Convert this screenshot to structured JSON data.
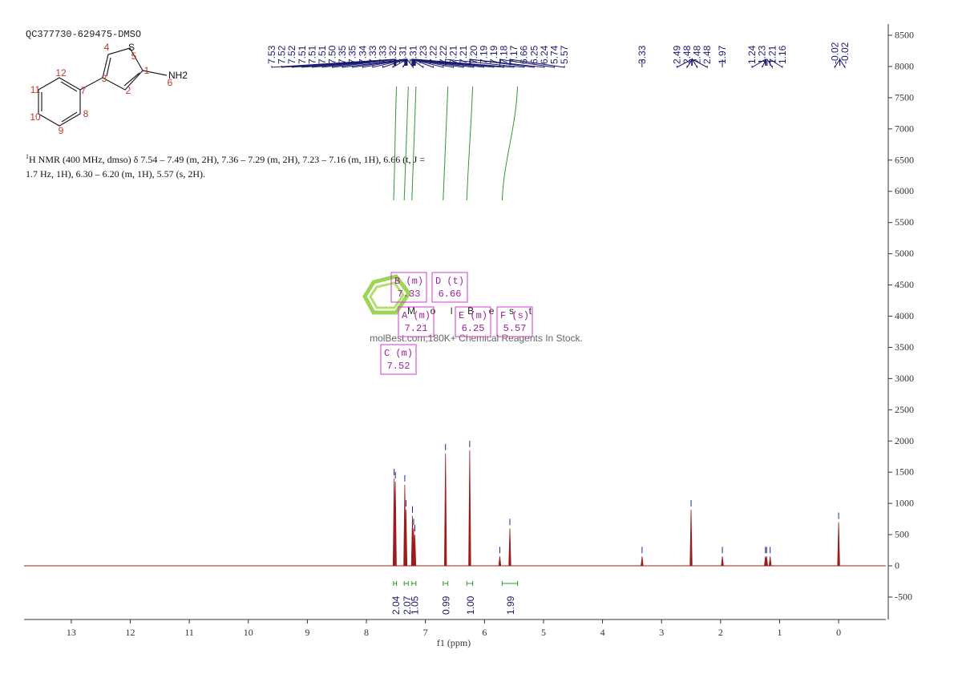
{
  "chart_data": {
    "type": "nmr",
    "title": "QC377730-629475-DMSO",
    "x_label": "f1 (ppm)",
    "xlim": [
      13.8,
      -0.8
    ],
    "xticks": [
      13,
      12,
      11,
      10,
      9,
      8,
      7,
      6,
      5,
      4,
      3,
      2,
      1,
      0
    ],
    "ylim": [
      -860,
      8680
    ],
    "yticks": [
      -500,
      0,
      500,
      1000,
      1500,
      2000,
      2500,
      3000,
      3500,
      4000,
      4500,
      5000,
      5500,
      6000,
      6500,
      7000,
      7500,
      8000,
      8500
    ],
    "series": [
      {
        "name": "spectrum",
        "color": "#9a1c1c",
        "x": [
          7.53,
          7.51,
          7.35,
          7.33,
          7.22,
          7.2,
          7.18,
          6.66,
          6.25,
          5.74,
          5.57,
          3.33,
          2.5,
          1.97,
          1.24,
          1.22,
          1.16,
          0
        ],
        "values": [
          1400,
          1350,
          1300,
          900,
          800,
          600,
          500,
          1800,
          1850,
          150,
          600,
          150,
          900,
          150,
          150,
          150,
          150,
          700
        ]
      }
    ],
    "peak_labels": [
      "7.53",
      "7.52",
      "7.52",
      "7.51",
      "7.51",
      "7.51",
      "7.50",
      "7.35",
      "7.35",
      "7.34",
      "7.33",
      "7.33",
      "7.32",
      "7.31",
      "7.31",
      "7.23",
      "7.22",
      "7.22",
      "7.21",
      "7.21",
      "7.20",
      "7.19",
      "7.19",
      "7.18",
      "7.17",
      "6.66",
      "6.25",
      "6.24",
      "5.74",
      "5.57",
      "3.33",
      "2.49",
      "2.48",
      "2.48",
      "2.48",
      "1.97",
      "1.24",
      "1.23",
      "1.21",
      "1.16",
      "-0.02",
      "-0.02"
    ],
    "integrals": [
      {
        "range": [
          7.54,
          7.49
        ],
        "label": "2.04"
      },
      {
        "range": [
          7.36,
          7.29
        ],
        "label": "2.07"
      },
      {
        "range": [
          7.23,
          7.16
        ],
        "label": "1.05"
      },
      {
        "range": [
          6.7,
          6.62
        ],
        "label": "0.99"
      },
      {
        "range": [
          6.3,
          6.2
        ],
        "label": "1.00"
      },
      {
        "range": [
          5.7,
          5.44
        ],
        "label": "1.99"
      }
    ],
    "multiplets": [
      {
        "name": "B (m)",
        "shift": "7.33"
      },
      {
        "name": "D (t)",
        "shift": "6.66"
      },
      {
        "name": "A (m)",
        "shift": "7.21"
      },
      {
        "name": "E (m)",
        "shift": "6.25"
      },
      {
        "name": "F (s)",
        "shift": "5.57"
      },
      {
        "name": "C (m)",
        "shift": "7.52"
      }
    ],
    "nmr_text": {
      "sup": "1",
      "line1": "H NMR (400 MHz, dmso) δ 7.54 – 7.49 (m, 2H), 7.36 – 7.29 (m, 2H), 7.23 – 7.16 (m, 1H), 6.66 (t, J =",
      "line2": "1.7 Hz, 1H), 6.30 – 6.20 (m, 1H), 5.57 (s, 2H)."
    },
    "structure": {
      "atoms": [
        "1",
        "2",
        "3",
        "4",
        "5",
        "6",
        "7",
        "8",
        "9",
        "10",
        "11",
        "12"
      ],
      "amine": "NH2",
      "sulfur": "S"
    },
    "watermark": {
      "brand": "MolBest",
      "tagline": "molBest.com,180K+ Chemical Reagents In Stock."
    }
  }
}
